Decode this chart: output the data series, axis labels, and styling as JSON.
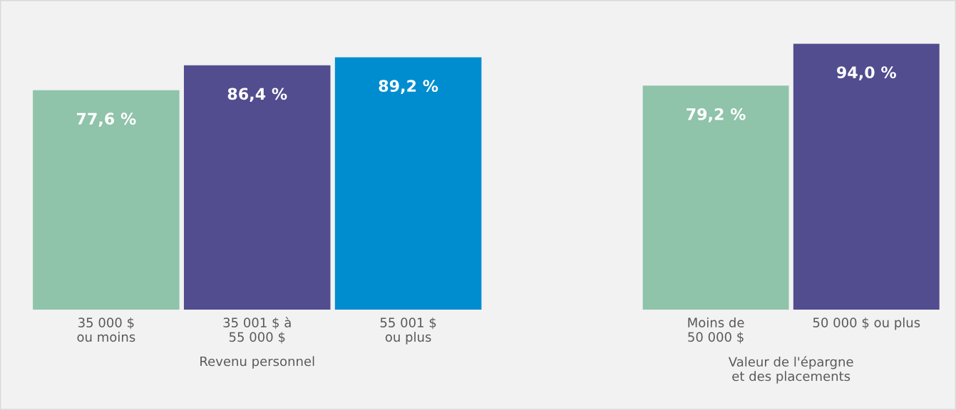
{
  "chart_data": [
    {
      "type": "bar",
      "xlabel": "Revenu personnel",
      "categories": [
        "35 000 $\nou moins",
        "35 001 $ à\n55 000 $",
        "55 001 $\nou plus"
      ],
      "values": [
        77.6,
        86.4,
        89.2
      ],
      "colors": [
        "#8fc3aa",
        "#524d8f",
        "#008dd0"
      ],
      "value_labels": [
        "77,6 %",
        "86,4 %",
        "89,2 %"
      ]
    },
    {
      "type": "bar",
      "xlabel": "Valeur de l'épargne\net des placements",
      "categories": [
        "Moins de\n50 000 $",
        "50 000 $ ou plus"
      ],
      "values": [
        79.2,
        94.0
      ],
      "colors": [
        "#8fc3aa",
        "#524d8f"
      ],
      "value_labels": [
        "79,2 %",
        "94,0 %"
      ]
    }
  ]
}
